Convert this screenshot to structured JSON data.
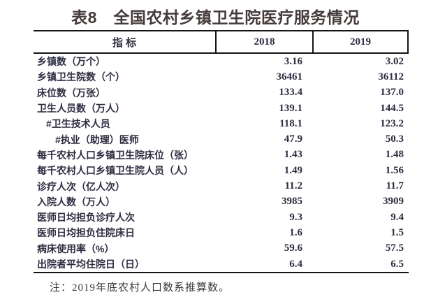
{
  "page": {
    "background": "#ffffff"
  },
  "title": {
    "text": "表8　全国农村乡镇卫生院医疗服务情况",
    "color": "#453b3b"
  },
  "table": {
    "ink_color": "#2d2d42",
    "border_color": "#141414",
    "columns": [
      "指 标",
      "2018",
      "2019"
    ],
    "rows": [
      {
        "label": "乡镇数（万个）",
        "indent": 0,
        "y2018": "3.16",
        "y2019": "3.02"
      },
      {
        "label": "乡镇卫生院数（个）",
        "indent": 0,
        "y2018": "36461",
        "y2019": "36112"
      },
      {
        "label": "床位数（万张）",
        "indent": 0,
        "y2018": "133.4",
        "y2019": "137.0"
      },
      {
        "label": "卫生人员数（万人）",
        "indent": 0,
        "y2018": "139.1",
        "y2019": "144.5"
      },
      {
        "label": "#卫生技术人员",
        "indent": 1,
        "y2018": "118.1",
        "y2019": "123.2"
      },
      {
        "label": "#执业（助理）医师",
        "indent": 2,
        "y2018": "47.9",
        "y2019": "50.3"
      },
      {
        "label": "每千农村人口乡镇卫生院床位（张）",
        "indent": 0,
        "y2018": "1.43",
        "y2019": "1.48"
      },
      {
        "label": "每千农村人口乡镇卫生院人员（人）",
        "indent": 0,
        "y2018": "1.49",
        "y2019": "1.56"
      },
      {
        "label": "诊疗人次（亿人次）",
        "indent": 0,
        "y2018": "11.2",
        "y2019": "11.7"
      },
      {
        "label": "入院人数（万人）",
        "indent": 0,
        "y2018": "3985",
        "y2019": "3909"
      },
      {
        "label": "医师日均担负诊疗人次",
        "indent": 0,
        "y2018": "9.3",
        "y2019": "9.4"
      },
      {
        "label": "医师日均担负住院床日",
        "indent": 0,
        "y2018": "1.6",
        "y2019": "1.5"
      },
      {
        "label": "病床使用率（%）",
        "indent": 0,
        "y2018": "59.6",
        "y2019": "57.5"
      },
      {
        "label": "出院者平均住院日（日）",
        "indent": 0,
        "y2018": "6.4",
        "y2019": "6.5"
      }
    ]
  },
  "note": {
    "text": "注：2019年底农村人口数系推算数。",
    "color": "#3a3a3a"
  }
}
